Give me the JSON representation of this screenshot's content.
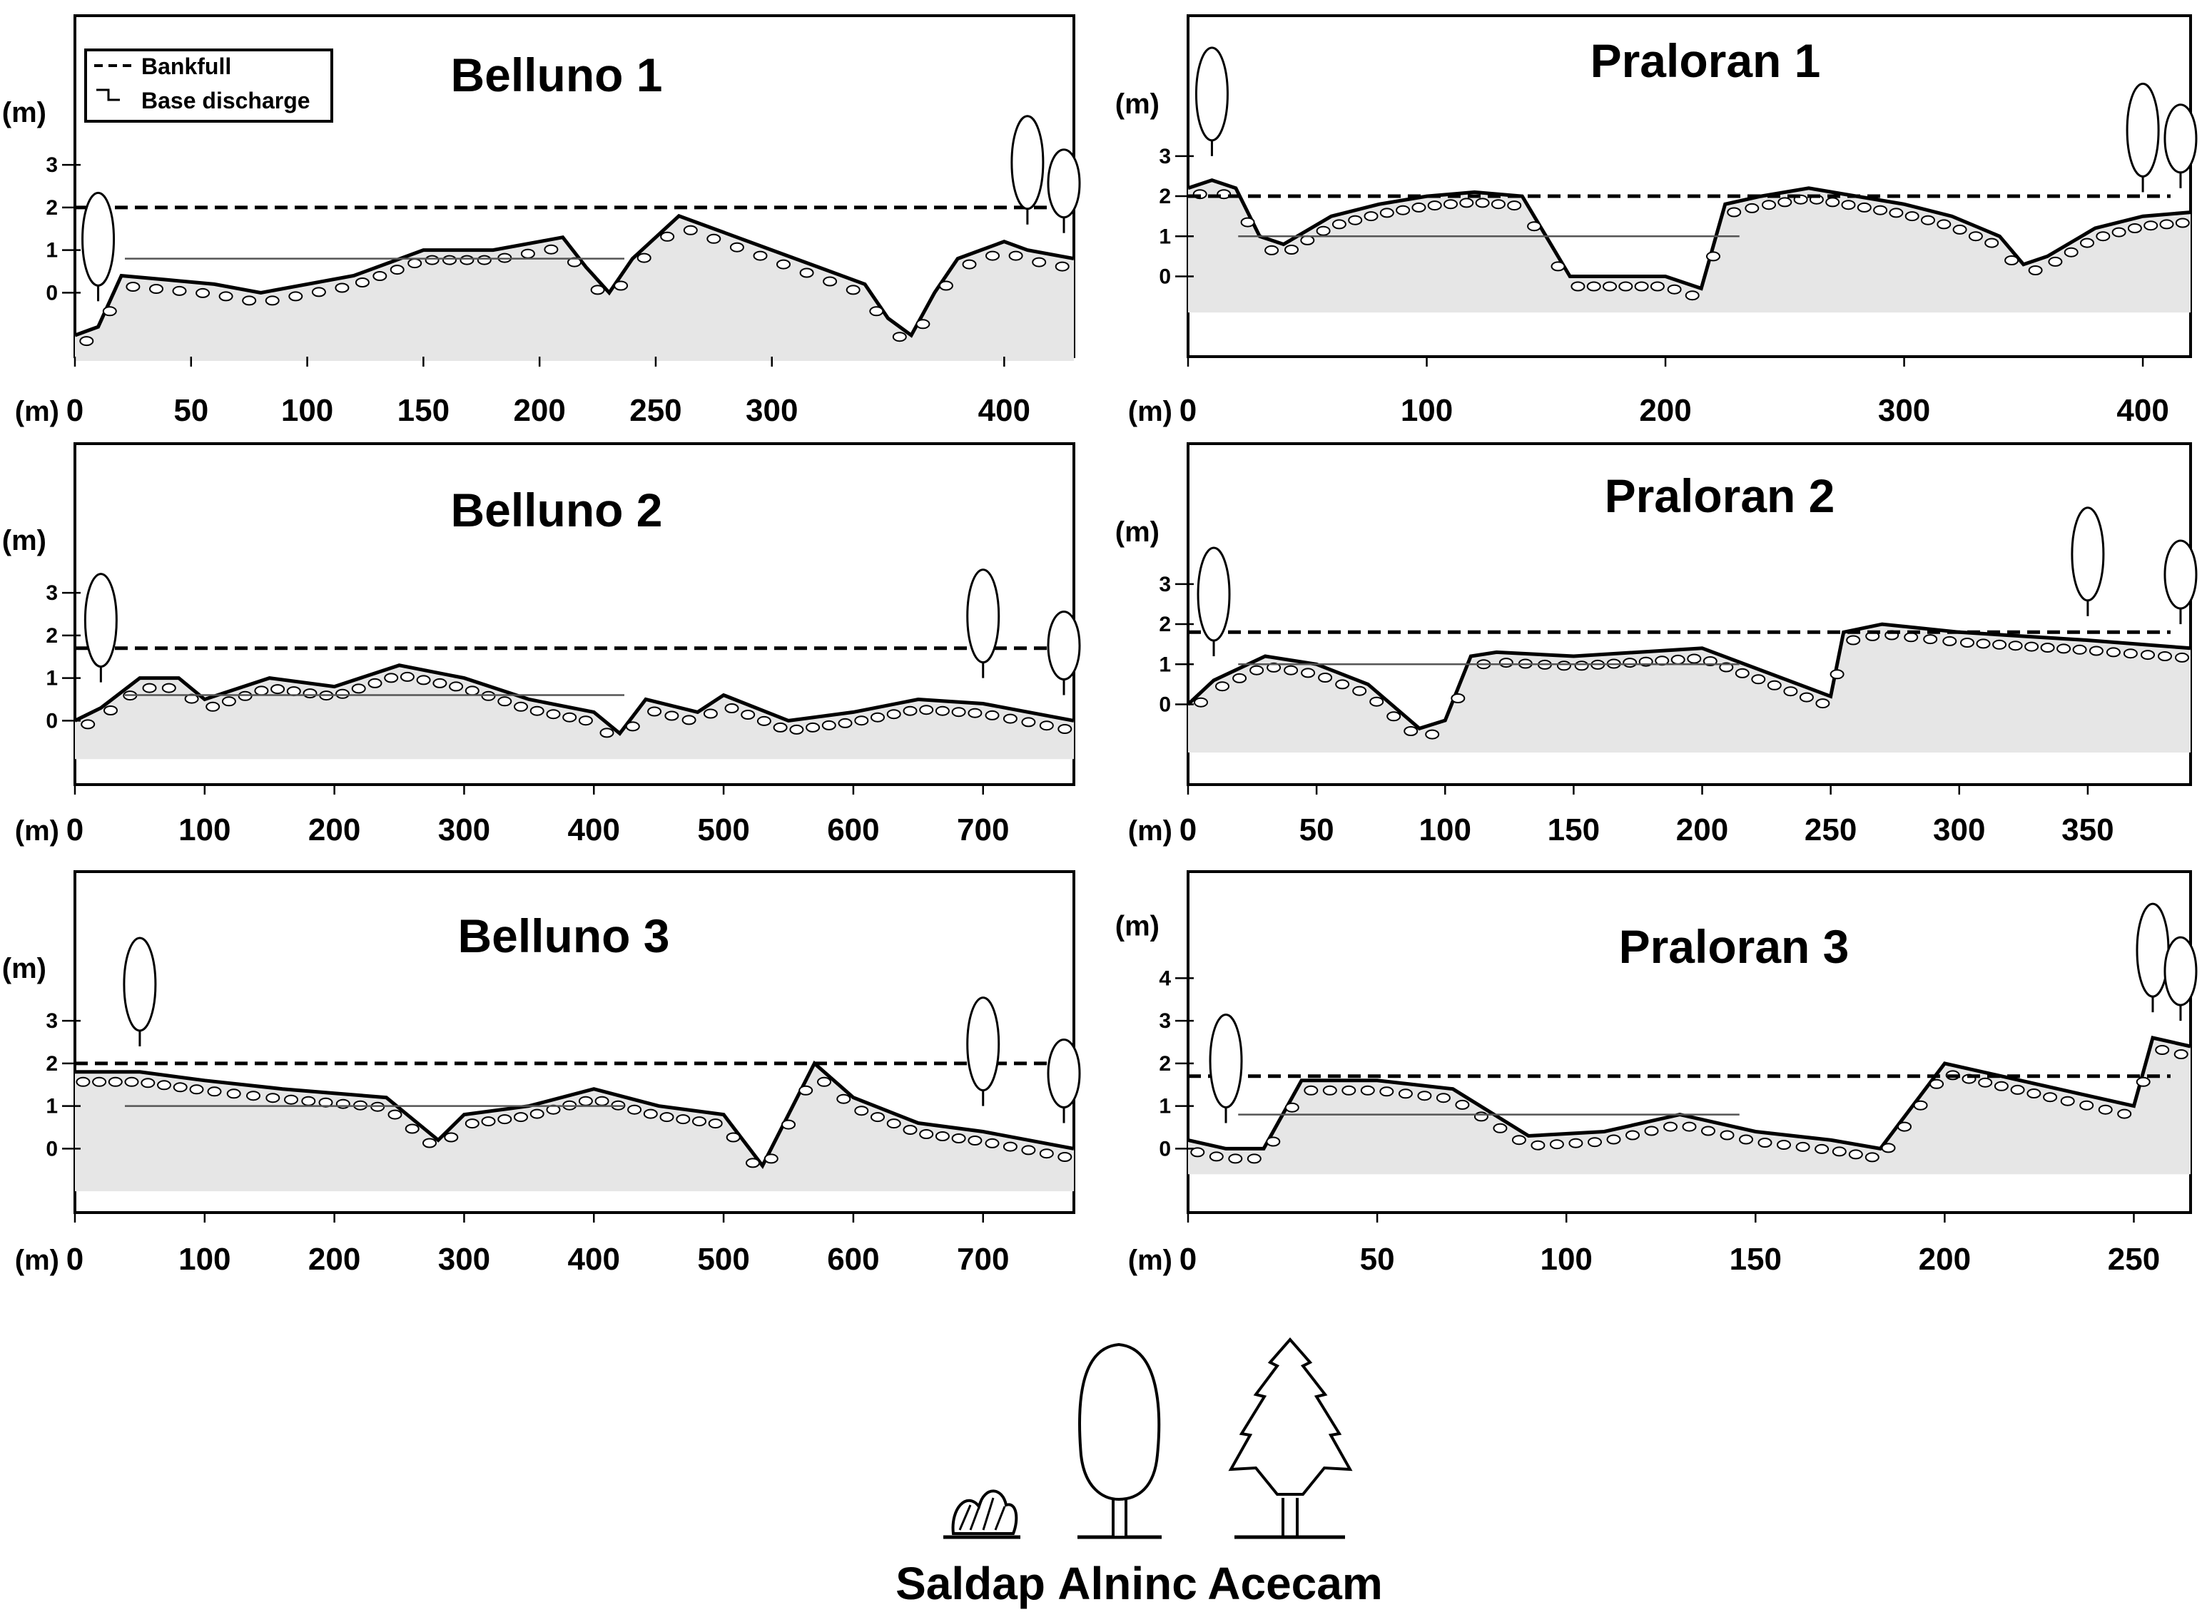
{
  "figure_description_labels": {
    "legend": {
      "bankfull": "Bankfull",
      "base_discharge": "Base discharge"
    },
    "species": [
      {
        "key": "saldap",
        "label": "Saldap"
      },
      {
        "key": "alninc",
        "label": "Alninc"
      },
      {
        "key": "acecam",
        "label": "Acecam"
      }
    ]
  },
  "colors": {
    "stroke": "#000000",
    "vegetation_band": "#8a8a8a",
    "water_fill": "#c8c8c8",
    "background": "#ffffff"
  },
  "chart_data": [
    {
      "id": "belluno1",
      "type": "cross-section",
      "title": "Belluno 1",
      "xlabel": "(m)",
      "ylabel": "(m)",
      "xlim": [
        0,
        430
      ],
      "ylim": [
        -1.5,
        6.5
      ],
      "xticks": [
        0,
        50,
        100,
        150,
        200,
        250,
        300,
        400
      ],
      "yticks": [
        0,
        1,
        2,
        3
      ],
      "bankfull": 2.0,
      "base_discharge": 0.8,
      "has_legend": true,
      "profile_x": [
        0,
        10,
        20,
        40,
        60,
        80,
        100,
        120,
        150,
        180,
        200,
        210,
        220,
        230,
        240,
        260,
        280,
        300,
        320,
        340,
        350,
        360,
        370,
        380,
        390,
        400,
        410,
        430
      ],
      "profile_y": [
        -1.0,
        -0.8,
        0.4,
        0.3,
        0.2,
        0.0,
        0.2,
        0.4,
        1.0,
        1.0,
        1.2,
        1.3,
        0.6,
        0.0,
        0.8,
        1.8,
        1.4,
        1.0,
        0.6,
        0.2,
        -0.6,
        -1.0,
        0.0,
        0.8,
        1.0,
        1.2,
        1.0,
        0.8
      ]
    },
    {
      "id": "praloran1",
      "type": "cross-section",
      "title": "Praloran 1",
      "xlabel": "(m)",
      "ylabel": "(m)",
      "xlim": [
        0,
        420
      ],
      "ylim": [
        -2,
        6.5
      ],
      "xticks": [
        0,
        100,
        200,
        300,
        400
      ],
      "yticks": [
        0,
        1,
        2,
        3
      ],
      "bankfull": 2.0,
      "base_discharge": 1.0,
      "has_legend": false,
      "profile_x": [
        0,
        10,
        20,
        30,
        40,
        60,
        80,
        100,
        120,
        140,
        150,
        160,
        180,
        200,
        215,
        225,
        240,
        260,
        280,
        300,
        320,
        340,
        350,
        360,
        380,
        400,
        420
      ],
      "profile_y": [
        2.2,
        2.4,
        2.2,
        1.0,
        0.8,
        1.5,
        1.8,
        2.0,
        2.1,
        2.0,
        1.0,
        0.0,
        0.0,
        0.0,
        -0.3,
        1.8,
        2.0,
        2.2,
        2.0,
        1.8,
        1.5,
        1.0,
        0.3,
        0.5,
        1.2,
        1.5,
        1.6
      ]
    },
    {
      "id": "belluno2",
      "type": "cross-section",
      "title": "Belluno 2",
      "xlabel": "(m)",
      "ylabel": "(m)",
      "xlim": [
        0,
        770
      ],
      "ylim": [
        -1.5,
        6.5
      ],
      "xticks": [
        0,
        100,
        200,
        300,
        400,
        500,
        600,
        700
      ],
      "yticks": [
        0,
        1,
        2,
        3
      ],
      "bankfull": 1.7,
      "base_discharge": 0.6,
      "has_legend": false,
      "profile_x": [
        0,
        20,
        50,
        80,
        100,
        150,
        200,
        250,
        300,
        350,
        400,
        420,
        440,
        480,
        500,
        550,
        600,
        650,
        700,
        770
      ],
      "profile_y": [
        0.0,
        0.3,
        1.0,
        1.0,
        0.5,
        1.0,
        0.8,
        1.3,
        1.0,
        0.5,
        0.2,
        -0.3,
        0.5,
        0.2,
        0.6,
        0.0,
        0.2,
        0.5,
        0.4,
        0.0
      ]
    },
    {
      "id": "praloran2",
      "type": "cross-section",
      "title": "Praloran 2",
      "xlabel": "(m)",
      "ylabel": "(m)",
      "xlim": [
        0,
        390
      ],
      "ylim": [
        -2,
        6.5
      ],
      "xticks": [
        0,
        50,
        100,
        150,
        200,
        250,
        300,
        350
      ],
      "yticks": [
        0,
        1,
        2,
        3
      ],
      "bankfull": 1.8,
      "base_discharge": 1.0,
      "has_legend": false,
      "profile_x": [
        0,
        10,
        30,
        50,
        70,
        90,
        100,
        110,
        120,
        150,
        200,
        250,
        255,
        270,
        300,
        350,
        390
      ],
      "profile_y": [
        0.0,
        0.6,
        1.2,
        1.0,
        0.5,
        -0.6,
        -0.4,
        1.2,
        1.3,
        1.2,
        1.4,
        0.2,
        1.8,
        2.0,
        1.8,
        1.6,
        1.4
      ]
    },
    {
      "id": "belluno3",
      "type": "cross-section",
      "title": "Belluno 3",
      "xlabel": "(m)",
      "ylabel": "(m)",
      "xlim": [
        0,
        770
      ],
      "ylim": [
        -1.5,
        6.5
      ],
      "xticks": [
        0,
        100,
        200,
        300,
        400,
        500,
        600,
        700
      ],
      "yticks": [
        0,
        1,
        2,
        3
      ],
      "bankfull": 2.0,
      "base_discharge": 1.0,
      "has_legend": false,
      "profile_x": [
        0,
        50,
        100,
        160,
        200,
        240,
        280,
        300,
        350,
        400,
        450,
        500,
        530,
        570,
        600,
        650,
        700,
        770
      ],
      "profile_y": [
        1.8,
        1.8,
        1.6,
        1.4,
        1.3,
        1.2,
        0.2,
        0.8,
        1.0,
        1.4,
        1.0,
        0.8,
        -0.4,
        2.0,
        1.2,
        0.6,
        0.4,
        0.0
      ]
    },
    {
      "id": "praloran3",
      "type": "cross-section",
      "title": "Praloran 3",
      "xlabel": "(m)",
      "ylabel": "(m)",
      "xlim": [
        0,
        265
      ],
      "ylim": [
        -1.5,
        6.5
      ],
      "xticks": [
        0,
        50,
        100,
        150,
        200,
        250
      ],
      "yticks": [
        0,
        1,
        2,
        3,
        4
      ],
      "bankfull": 1.7,
      "base_discharge": 0.8,
      "has_legend": false,
      "profile_x": [
        0,
        10,
        20,
        30,
        50,
        70,
        90,
        110,
        130,
        150,
        170,
        183,
        200,
        230,
        250,
        255,
        265
      ],
      "profile_y": [
        0.2,
        0.0,
        0.0,
        1.6,
        1.6,
        1.4,
        0.3,
        0.4,
        0.8,
        0.4,
        0.2,
        0.0,
        2.0,
        1.4,
        1.0,
        2.6,
        2.4
      ]
    }
  ]
}
